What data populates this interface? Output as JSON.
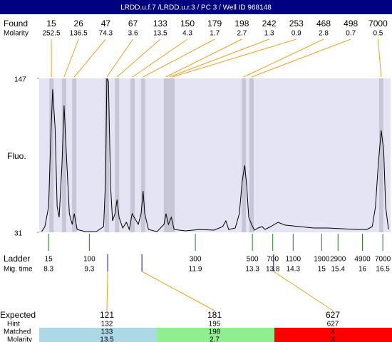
{
  "title": "LRDD.u.f.7 /LRDD.u.r.3 / PC 3 / Well ID 968148",
  "found": {
    "label": "Found",
    "molarity_label": "Molarity",
    "peaks": [
      {
        "size": 15,
        "molarity": 252.5,
        "time": 8.37
      },
      {
        "size": 26,
        "molarity": 136.5,
        "time": 8.68
      },
      {
        "size": 47,
        "molarity": 74.3,
        "time": 8.93
      },
      {
        "size": 67,
        "molarity": 3.6,
        "time": 9.73
      },
      {
        "size": 133,
        "molarity": 13.5,
        "time": 9.98
      },
      {
        "size": 150,
        "molarity": 4.3,
        "time": 10.36
      },
      {
        "size": 179,
        "molarity": 1.7,
        "time": 10.62
      },
      {
        "size": 198,
        "molarity": 2.7,
        "time": 11.18
      },
      {
        "size": 242,
        "molarity": 1.3,
        "time": 11.27
      },
      {
        "size": 253,
        "molarity": 0.9,
        "time": 11.34
      },
      {
        "size": 468,
        "molarity": 2.8,
        "time": 13.09
      },
      {
        "size": 498,
        "molarity": 0.7,
        "time": 13.28
      },
      {
        "size": 7000,
        "molarity": 0.5,
        "time": 16.46
      }
    ]
  },
  "plot": {
    "y_label": "Fluo.",
    "xlim": [
      8.07,
      16.69
    ],
    "ylim": [
      31,
      147
    ],
    "yticks": [
      31,
      147
    ],
    "trace": {
      "x": [
        8.13,
        8.21,
        8.3,
        8.35,
        8.4,
        8.46,
        8.51,
        8.56,
        8.63,
        8.68,
        8.74,
        8.81,
        8.88,
        8.93,
        9.0,
        9.21,
        9.47,
        9.65,
        9.7,
        9.73,
        9.77,
        9.82,
        9.87,
        9.93,
        9.98,
        10.03,
        10.12,
        10.21,
        10.28,
        10.35,
        10.4,
        10.5,
        10.57,
        10.62,
        10.66,
        10.75,
        10.96,
        11.13,
        11.18,
        11.24,
        11.31,
        11.38,
        11.66,
        12.01,
        12.36,
        12.57,
        12.65,
        12.72,
        12.88,
        12.98,
        13.05,
        13.11,
        13.16,
        13.21,
        13.28,
        13.35,
        13.44,
        13.54,
        13.61,
        13.75,
        13.93,
        14.1,
        14.45,
        14.8,
        15.15,
        15.5,
        15.85,
        16.11,
        16.24,
        16.32,
        16.39,
        16.46,
        16.52,
        16.57,
        16.64
      ],
      "values": [
        31.5,
        35.3,
        50.3,
        98.7,
        138.9,
        109.4,
        50.3,
        42.3,
        82.6,
        126.6,
        87.9,
        45.0,
        36.9,
        45.0,
        33.1,
        31.5,
        31.5,
        35.3,
        71.8,
        147.0,
        144.3,
        66.4,
        39.6,
        45.0,
        55.7,
        42.3,
        34.2,
        38.5,
        33.1,
        45.0,
        42.3,
        36.9,
        45.0,
        62.1,
        45.0,
        33.1,
        31.5,
        36.9,
        45.0,
        36.9,
        42.3,
        33.1,
        32.1,
        33.1,
        32.6,
        35.3,
        39.6,
        33.1,
        34.2,
        45.0,
        69.1,
        81.5,
        66.4,
        42.3,
        36.9,
        32.6,
        34.2,
        35.3,
        33.1,
        35.3,
        38.5,
        36.4,
        35.3,
        34.2,
        34.2,
        33.7,
        33.1,
        33.1,
        35.3,
        50.3,
        82.6,
        107.8,
        93.3,
        50.3,
        33.1
      ]
    }
  },
  "ladder": {
    "label": "Ladder",
    "time_label": "Mig. time",
    "sizes": [
      15,
      100,
      300,
      500,
      700,
      1100,
      1900,
      2900,
      4900,
      7000
    ],
    "times": [
      8.3,
      9.3,
      11.9,
      13.3,
      13.8,
      14.3,
      15,
      15.4,
      16,
      16.5
    ]
  },
  "expected": {
    "label": "Expected",
    "hint_label": "Hint",
    "matched_label": "Matched",
    "molarity_label": "Molarity",
    "rows": [
      {
        "expected": 121,
        "hint": 132,
        "matched": 133,
        "molarity": 13.5,
        "time": 9.75,
        "color": "#add8e6"
      },
      {
        "expected": 181,
        "hint": 195,
        "matched": 198,
        "molarity": 2.7,
        "time": 10.59,
        "color": "#90ee90"
      },
      {
        "expected": 627,
        "hint": 627,
        "matched": "X",
        "molarity": "X",
        "time": 13.82,
        "color": "#ff0000"
      }
    ]
  }
}
